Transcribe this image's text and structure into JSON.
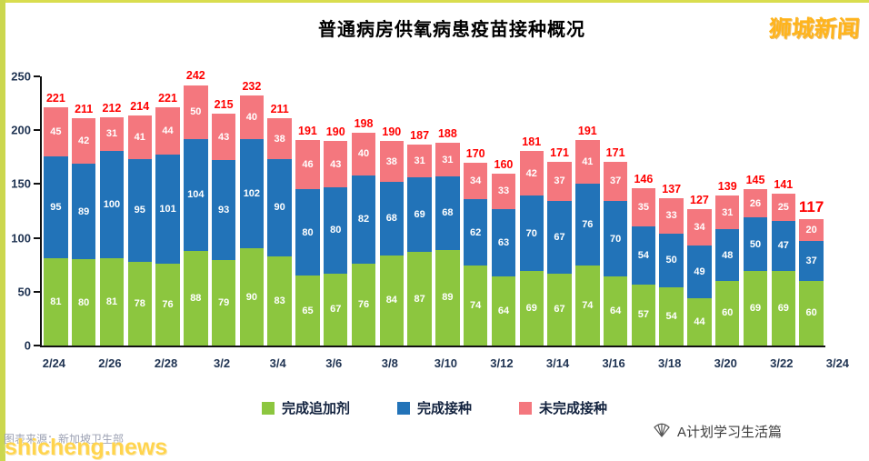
{
  "page": {
    "brand": "狮城新闻",
    "watermark": "shicheng.news",
    "source_caption": "图表来源：新加坡卫生部",
    "footer_attribution": "A计划学习生活篇"
  },
  "icons": {
    "footer": "fan-icon"
  },
  "colors": {
    "border_stripe": "#CBD74E",
    "total_label": "#FF0000",
    "axis_text": "#1F3352",
    "brand": "#FFB41C",
    "watermark": "#FFD44D"
  },
  "chart_data": {
    "type": "bar",
    "stacked": true,
    "title": "普通病房供氧病患疫苗接种概况",
    "xlabel": "",
    "ylabel": "",
    "ylim": [
      0,
      250
    ],
    "y_ticks": [
      0,
      50,
      100,
      150,
      200,
      250
    ],
    "x_tick_labels": [
      "2/24",
      "2/26",
      "2/28",
      "3/2",
      "3/4",
      "3/6",
      "3/8",
      "3/10",
      "3/12",
      "3/14",
      "3/16",
      "3/18",
      "3/20",
      "3/22",
      "3/24"
    ],
    "x_tick_every": 2,
    "grid": false,
    "legend_position": "bottom",
    "series": [
      {
        "key": "booster",
        "name": "完成追加剂",
        "color": "#8CC63F",
        "values": [
          81,
          80,
          81,
          78,
          76,
          88,
          79,
          90,
          83,
          65,
          67,
          76,
          84,
          87,
          89,
          74,
          64,
          69,
          67,
          74,
          64,
          57,
          54,
          44,
          60,
          69,
          69,
          60
        ]
      },
      {
        "key": "vaccinated",
        "name": "完成接种",
        "color": "#2273B8",
        "values": [
          95,
          89,
          100,
          95,
          101,
          104,
          93,
          102,
          90,
          80,
          80,
          82,
          68,
          69,
          68,
          62,
          63,
          70,
          67,
          76,
          70,
          54,
          50,
          49,
          48,
          50,
          47,
          37
        ]
      },
      {
        "key": "unvaccinated",
        "name": "未完成接种",
        "color": "#F4777E",
        "values": [
          45,
          42,
          31,
          41,
          44,
          50,
          43,
          40,
          38,
          46,
          43,
          40,
          38,
          31,
          31,
          34,
          33,
          42,
          37,
          41,
          37,
          35,
          33,
          34,
          31,
          26,
          25,
          20
        ]
      }
    ],
    "totals": [
      221,
      211,
      212,
      214,
      221,
      242,
      215,
      232,
      211,
      191,
      190,
      198,
      190,
      187,
      188,
      170,
      160,
      181,
      171,
      191,
      171,
      146,
      137,
      127,
      139,
      145,
      141,
      117
    ]
  }
}
